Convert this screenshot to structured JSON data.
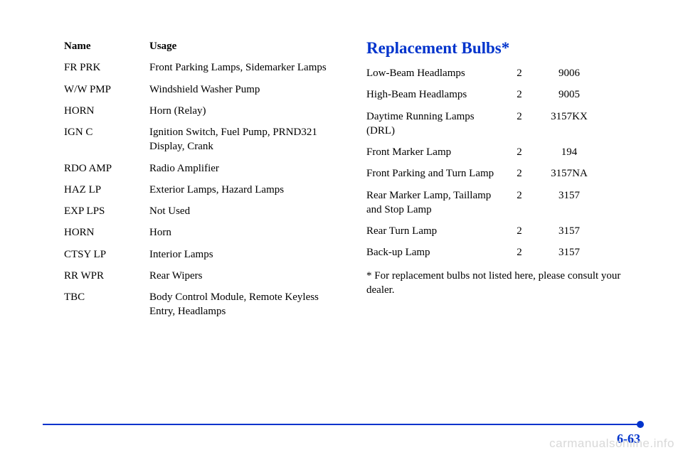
{
  "left_table": {
    "headers": {
      "name": "Name",
      "usage": "Usage"
    },
    "rows": [
      {
        "name": "FR PRK",
        "usage": "Front Parking Lamps, Sidemarker Lamps"
      },
      {
        "name": "W/W PMP",
        "usage": "Windshield Washer Pump"
      },
      {
        "name": "HORN",
        "usage": "Horn (Relay)"
      },
      {
        "name": "IGN C",
        "usage": "Ignition Switch, Fuel Pump, PRND321 Display, Crank"
      },
      {
        "name": "RDO AMP",
        "usage": "Radio Amplifier"
      },
      {
        "name": "HAZ LP",
        "usage": "Exterior Lamps, Hazard Lamps"
      },
      {
        "name": "EXP LPS",
        "usage": "Not Used"
      },
      {
        "name": "HORN",
        "usage": "Horn"
      },
      {
        "name": "CTSY LP",
        "usage": "Interior Lamps"
      },
      {
        "name": "RR WPR",
        "usage": "Rear Wipers"
      },
      {
        "name": "TBC",
        "usage": "Body Control Module, Remote Keyless Entry, Headlamps"
      }
    ]
  },
  "right_section": {
    "title": "Replacement Bulbs*",
    "rows": [
      {
        "lamp": "Low-Beam Headlamps",
        "qty": "2",
        "part": "9006"
      },
      {
        "lamp": "High-Beam Headlamps",
        "qty": "2",
        "part": "9005"
      },
      {
        "lamp": "Daytime Running Lamps (DRL)",
        "qty": "2",
        "part": "3157KX"
      },
      {
        "lamp": "Front Marker Lamp",
        "qty": "2",
        "part": "194"
      },
      {
        "lamp": "Front Parking and Turn Lamp",
        "qty": "2",
        "part": "3157NA"
      },
      {
        "lamp": "Rear Marker Lamp, Taillamp and Stop Lamp",
        "qty": "2",
        "part": "3157"
      },
      {
        "lamp": "Rear Turn Lamp",
        "qty": "2",
        "part": "3157"
      },
      {
        "lamp": "Back-up Lamp",
        "qty": "2",
        "part": "3157"
      }
    ],
    "footnote": "* For replacement bulbs not listed here, please consult your dealer."
  },
  "page_number": "6-63",
  "watermark": "carmanualsonline.info",
  "colors": {
    "accent": "#0033cc",
    "text": "#000000",
    "watermark": "#d9d9d9",
    "background": "#ffffff"
  }
}
